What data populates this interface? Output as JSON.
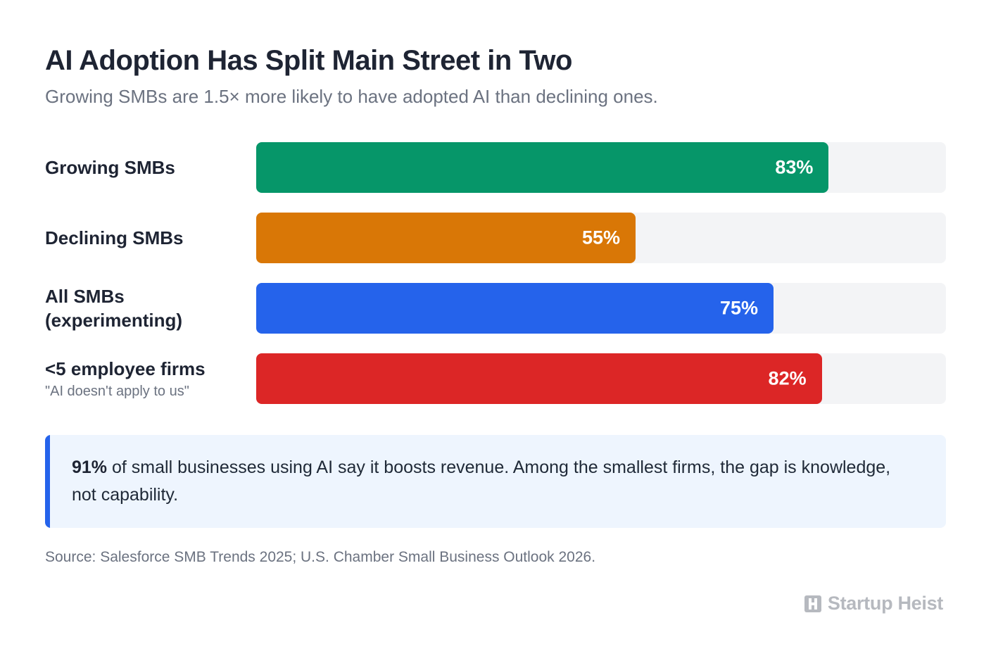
{
  "header": {
    "title": "AI Adoption Has Split Main Street in Two",
    "subtitle": "Growing SMBs are 1.5× more likely to have adopted AI than declining ones."
  },
  "chart_data": {
    "type": "bar",
    "orientation": "horizontal",
    "title": "AI Adoption Has Split Main Street in Two",
    "subtitle": "Growing SMBs are 1.5× more likely to have adopted AI than declining ones.",
    "xlim": [
      0,
      100
    ],
    "grid": false,
    "categories": [
      "Growing SMBs",
      "Declining SMBs",
      "All SMBs (experimenting)",
      "<5 employee firms"
    ],
    "values": [
      83,
      55,
      75,
      82
    ],
    "bars": [
      {
        "label": "Growing SMBs",
        "note": "",
        "value": 83,
        "value_label": "83%",
        "color": "#069669"
      },
      {
        "label": "Declining SMBs",
        "note": "",
        "value": 55,
        "value_label": "55%",
        "color": "#d97706"
      },
      {
        "label": "All SMBs (experimenting)",
        "note": "",
        "value": 75,
        "value_label": "75%",
        "color": "#2563eb"
      },
      {
        "label": "<5 employee firms",
        "note": "\"AI doesn't apply to us\"",
        "value": 82,
        "value_label": "82%",
        "color": "#dc2626"
      }
    ],
    "track_color": "#f3f4f6"
  },
  "callout": {
    "highlight": "91%",
    "text": " of small businesses using AI say it boosts revenue. Among the smallest firms, the gap is knowledge, not capability.",
    "accent_color": "#2563eb"
  },
  "source": "Source: Salesforce SMB Trends 2025; U.S. Chamber Small Business Outlook 2026.",
  "brand": {
    "name": "Startup Heist",
    "icon": "h-logo-icon"
  }
}
